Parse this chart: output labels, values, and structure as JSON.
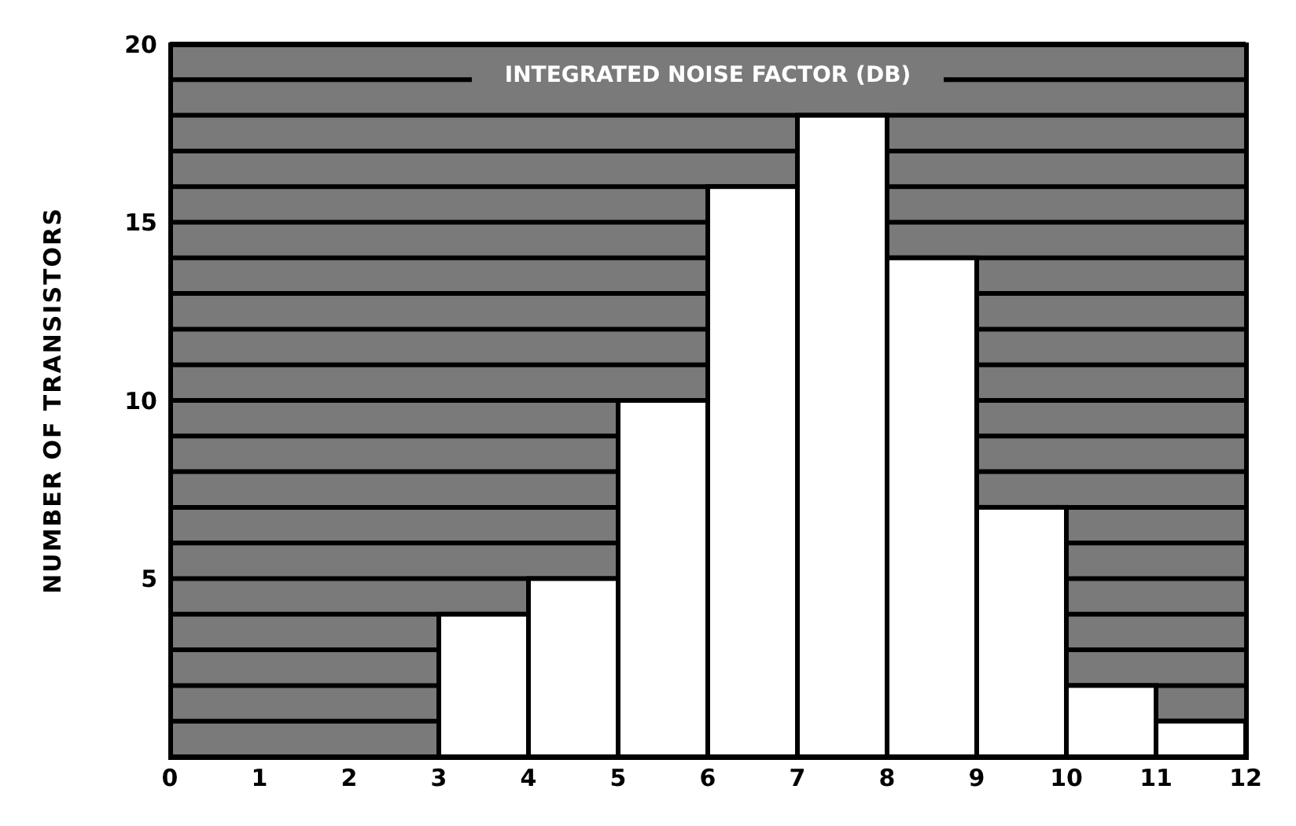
{
  "chart_data": {
    "type": "histogram",
    "title": "INTEGRATED NOISE FACTOR (DB)",
    "ylabel": "NUMBER OF TRANSISTORS",
    "bins": [
      0,
      1,
      2,
      3,
      4,
      5,
      6,
      7,
      8,
      9,
      10,
      11,
      12
    ],
    "values": [
      0,
      0,
      0,
      4,
      5,
      10,
      16,
      18,
      14,
      7,
      2,
      1
    ],
    "color": "#ffffff",
    "xlim": [
      0,
      12
    ],
    "xticks": [
      0,
      1,
      2,
      3,
      4,
      5,
      6,
      7,
      8,
      9,
      10,
      11,
      12
    ],
    "ylim": [
      0,
      20
    ],
    "yticks": [
      {
        "value": 0,
        "label": null
      },
      {
        "value": 1,
        "label": null
      },
      {
        "value": 2,
        "label": null
      },
      {
        "value": 3,
        "label": null
      },
      {
        "value": 4,
        "label": null
      },
      5,
      {
        "value": 6,
        "label": null
      },
      {
        "value": 7,
        "label": null
      },
      {
        "value": 8,
        "label": null
      },
      {
        "value": 9,
        "label": null
      },
      10,
      {
        "value": 11,
        "label": null
      },
      {
        "value": 12,
        "label": null
      },
      {
        "value": 13,
        "label": null
      },
      {
        "value": 14,
        "label": null
      },
      15,
      {
        "value": 16,
        "label": null
      },
      {
        "value": 17,
        "label": null
      },
      {
        "value": 18,
        "label": null
      },
      {
        "value": 19,
        "label": null
      },
      20
    ],
    "grid": "y"
  }
}
